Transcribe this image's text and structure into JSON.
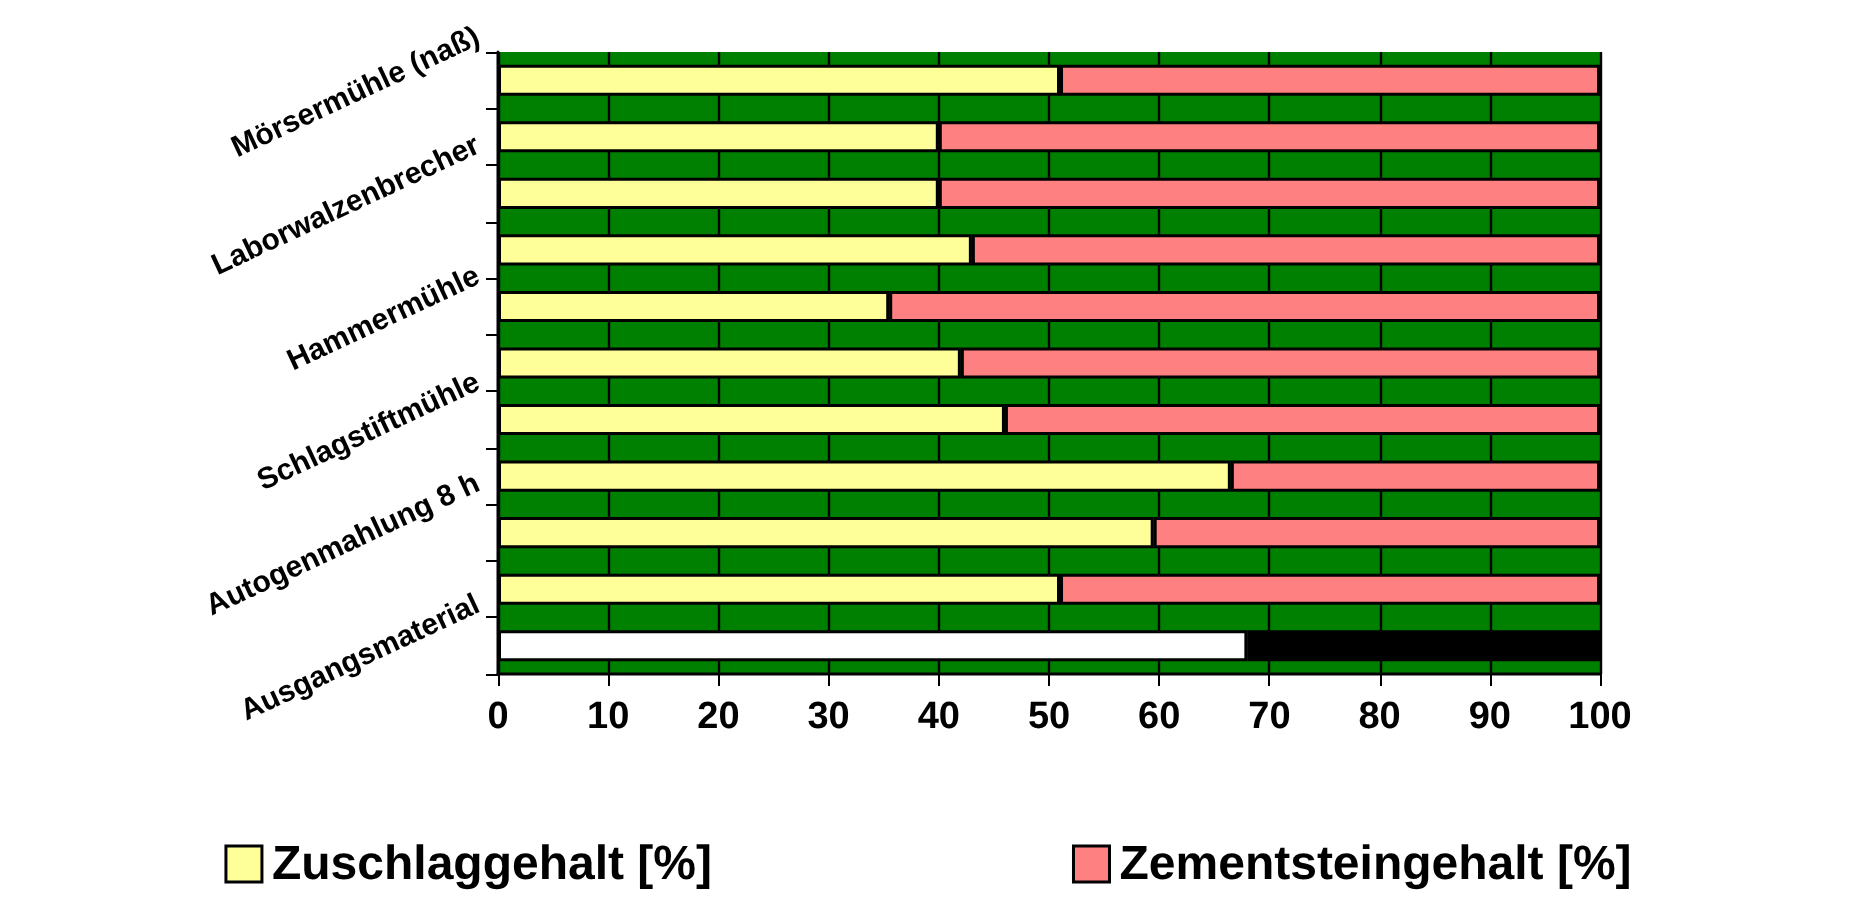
{
  "chart_data": {
    "type": "bar",
    "orientation": "horizontal",
    "stacked": true,
    "categories": [
      "Mörsermühle (naß)",
      null,
      "Laborwalzenbrecher",
      null,
      "Hammermühle",
      null,
      "Schlagstiftmühle",
      null,
      "Autogenmahlung 8 h",
      null,
      "Ausgangsmaterial"
    ],
    "series": [
      {
        "name": "Zuschlaggehalt [%]",
        "color": "#ffff99",
        "colors": [
          "#ffff99",
          "#ffff99",
          "#ffff99",
          "#ffff99",
          "#ffff99",
          "#ffff99",
          "#ffff99",
          "#ffff99",
          "#ffff99",
          "#ffff99",
          "#ffffff"
        ],
        "values": [
          51,
          40,
          40,
          43,
          35.5,
          42,
          46,
          66.5,
          59.5,
          51,
          68
        ]
      },
      {
        "name": "Zementsteingehalt [%]",
        "color": "#ff8080",
        "colors": [
          "#ff8080",
          "#ff8080",
          "#ff8080",
          "#ff8080",
          "#ff8080",
          "#ff8080",
          "#ff8080",
          "#ff8080",
          "#ff8080",
          "#ff8080",
          "#000000"
        ],
        "values": [
          49,
          60,
          60,
          57,
          64.5,
          58,
          54,
          33.5,
          40.5,
          49,
          32
        ]
      }
    ],
    "xlim": [
      0,
      100
    ],
    "xticks": [
      0,
      10,
      20,
      30,
      40,
      50,
      60,
      70,
      80,
      90,
      100
    ],
    "grid": "x",
    "legend": "bottom"
  }
}
